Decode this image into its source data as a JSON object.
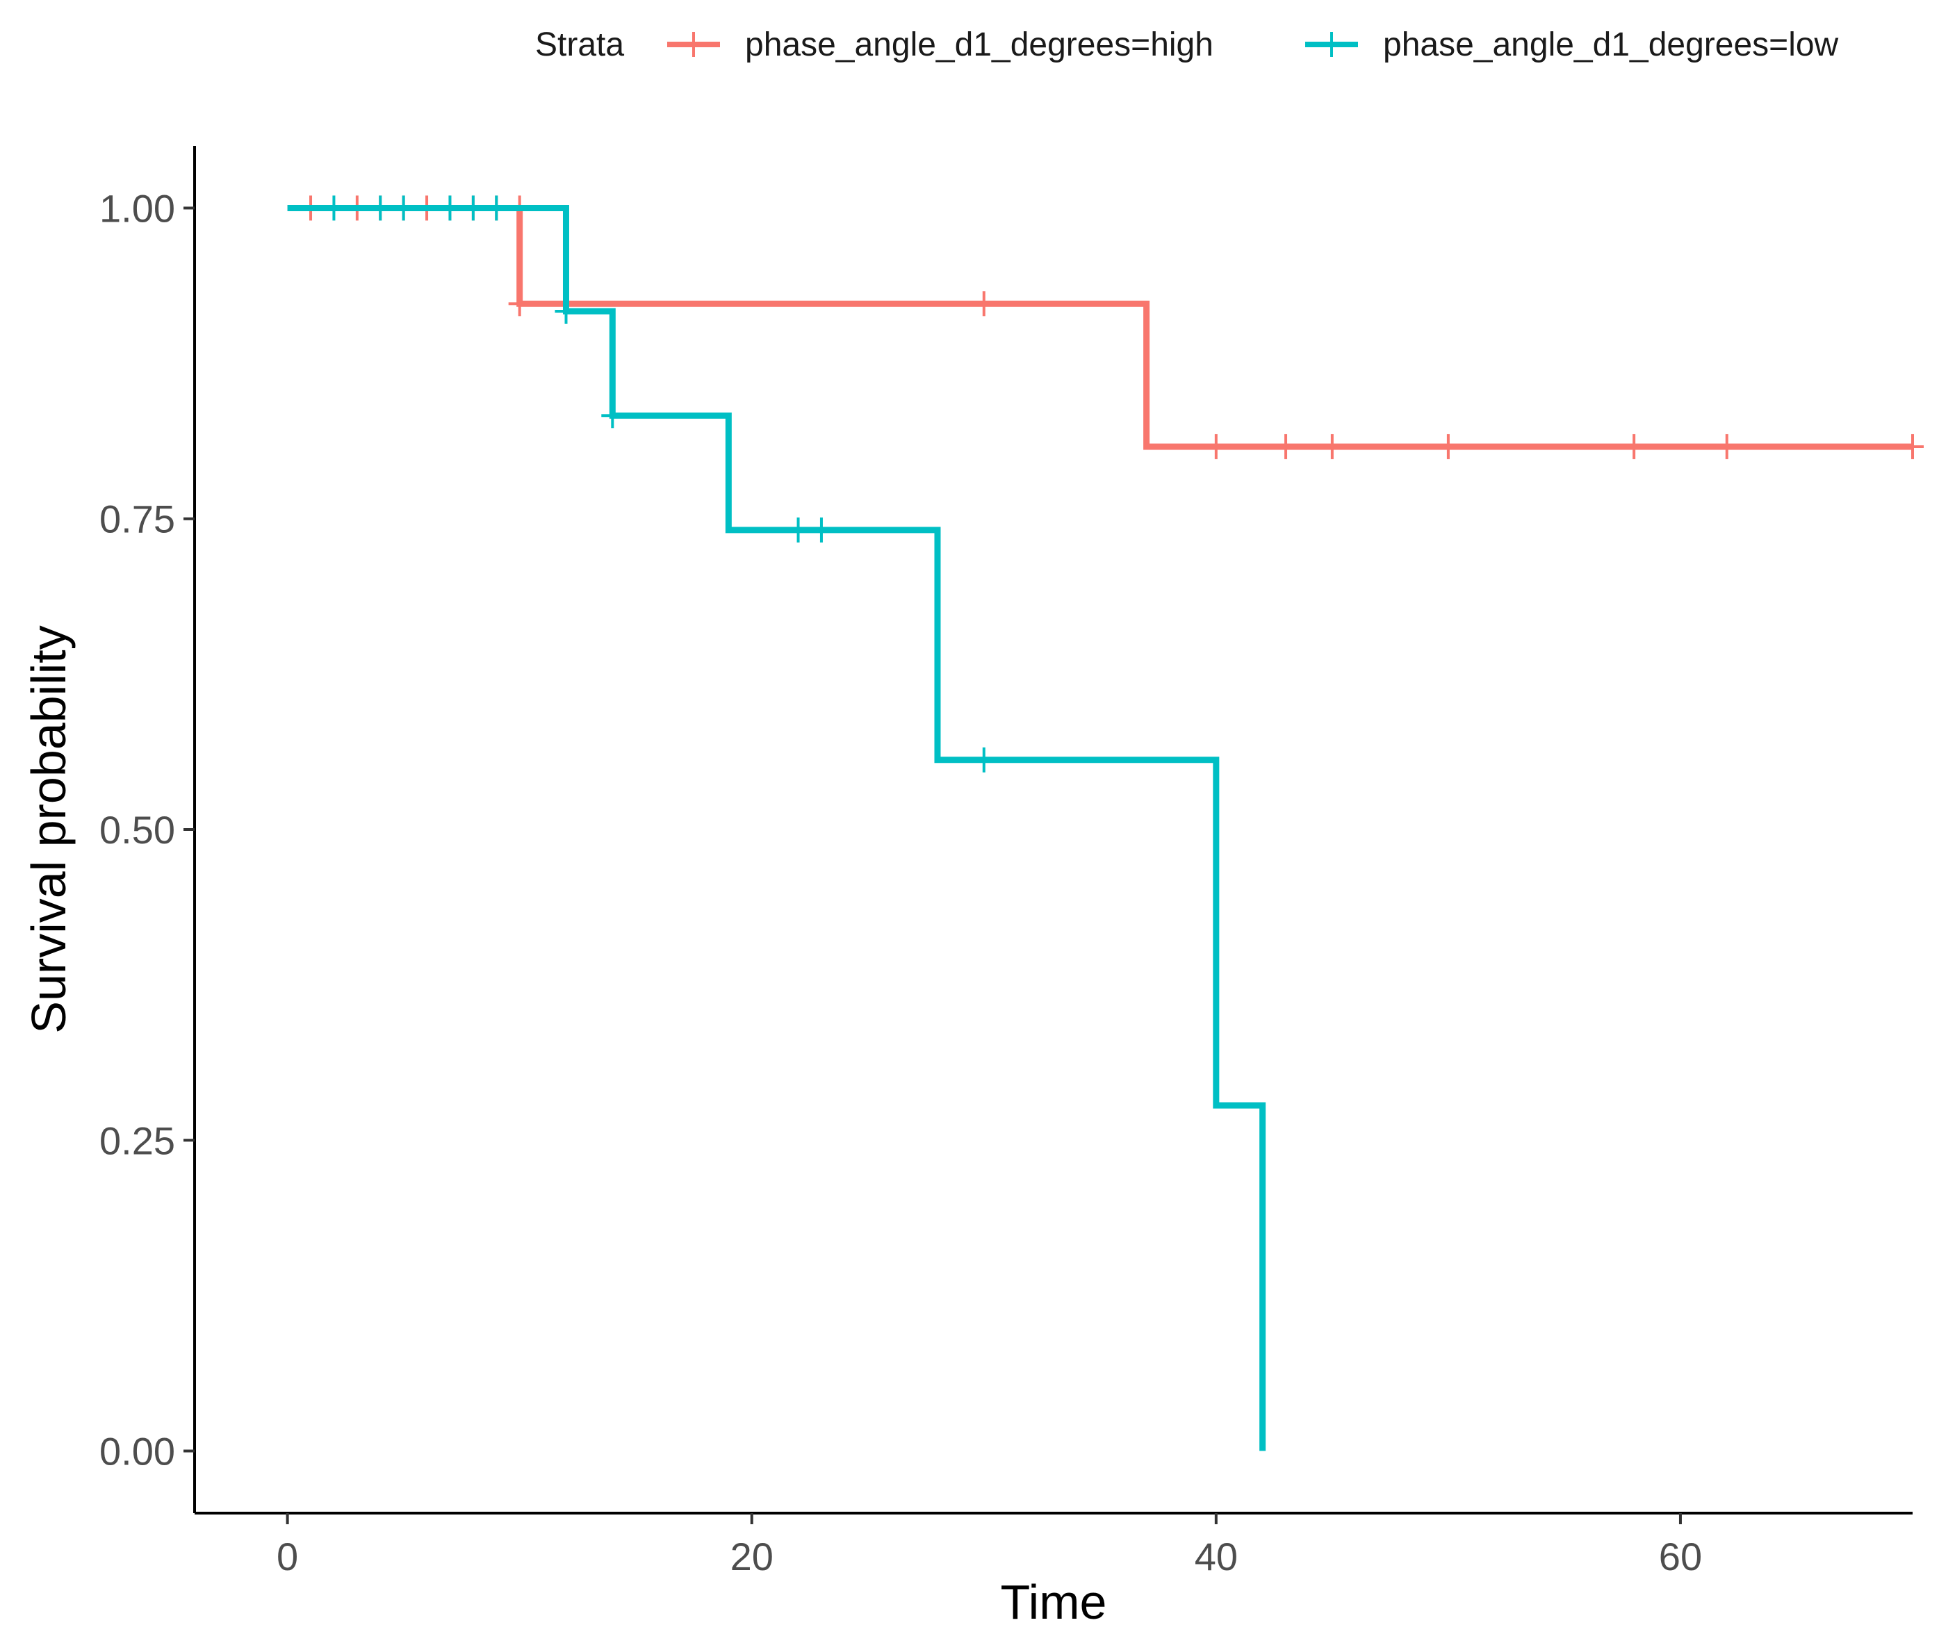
{
  "chart_data": {
    "type": "line",
    "subtype": "kaplan-meier-step",
    "xlabel": "Time",
    "ylabel": "Survival probability",
    "xlim": [
      -4,
      70
    ],
    "ylim": [
      -0.05,
      1.05
    ],
    "x_ticks": [
      0,
      20,
      40,
      60
    ],
    "y_ticks": [
      0,
      0.25,
      0.5,
      0.75,
      1.0
    ],
    "x_tick_labels": [
      "0",
      "20",
      "40",
      "60"
    ],
    "y_tick_labels": [
      "0.00",
      "0.25",
      "0.50",
      "0.75",
      "1.00"
    ],
    "grid": false,
    "legend": {
      "title": "Strata",
      "position": "top-right",
      "orientation": "horizontal"
    },
    "series": [
      {
        "name": "phase_angle_d1_degrees=high",
        "color": "#F8766D",
        "steps": [
          {
            "x": 0,
            "y": 1.0
          },
          {
            "x": 10,
            "y": 0.923
          },
          {
            "x": 37,
            "y": 0.808
          }
        ],
        "end_x": 70,
        "censored": [
          {
            "x": 1,
            "y": 1.0
          },
          {
            "x": 3,
            "y": 1.0
          },
          {
            "x": 4,
            "y": 1.0
          },
          {
            "x": 5,
            "y": 1.0
          },
          {
            "x": 6,
            "y": 1.0
          },
          {
            "x": 7,
            "y": 1.0
          },
          {
            "x": 8,
            "y": 1.0
          },
          {
            "x": 9,
            "y": 1.0
          },
          {
            "x": 10,
            "y": 1.0
          },
          {
            "x": 10,
            "y": 0.923
          },
          {
            "x": 30,
            "y": 0.923
          },
          {
            "x": 40,
            "y": 0.808
          },
          {
            "x": 43,
            "y": 0.808
          },
          {
            "x": 45,
            "y": 0.808
          },
          {
            "x": 50,
            "y": 0.808
          },
          {
            "x": 58,
            "y": 0.808
          },
          {
            "x": 62,
            "y": 0.808
          },
          {
            "x": 70,
            "y": 0.808
          }
        ]
      },
      {
        "name": "phase_angle_d1_degrees=low",
        "color": "#00BFC4",
        "steps": [
          {
            "x": 0,
            "y": 1.0
          },
          {
            "x": 12,
            "y": 0.917
          },
          {
            "x": 14,
            "y": 0.833
          },
          {
            "x": 19,
            "y": 0.741
          },
          {
            "x": 28,
            "y": 0.556
          },
          {
            "x": 40,
            "y": 0.278
          },
          {
            "x": 42,
            "y": 0.0
          }
        ],
        "end_x": 42,
        "censored": [
          {
            "x": 2,
            "y": 1.0
          },
          {
            "x": 4,
            "y": 1.0
          },
          {
            "x": 5,
            "y": 1.0
          },
          {
            "x": 7,
            "y": 1.0
          },
          {
            "x": 8,
            "y": 1.0
          },
          {
            "x": 9,
            "y": 1.0
          },
          {
            "x": 12,
            "y": 0.917
          },
          {
            "x": 14,
            "y": 0.833
          },
          {
            "x": 22,
            "y": 0.741
          },
          {
            "x": 23,
            "y": 0.741
          },
          {
            "x": 30,
            "y": 0.556
          }
        ]
      }
    ]
  }
}
